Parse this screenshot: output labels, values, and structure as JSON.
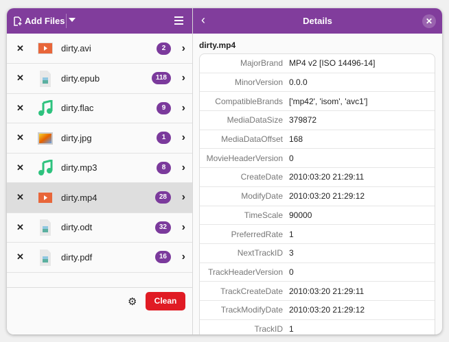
{
  "header": {
    "add_files": "Add Files",
    "title": "Details"
  },
  "files": [
    {
      "name": "dirty.avi",
      "count": "2",
      "type": "video"
    },
    {
      "name": "dirty.epub",
      "count": "118",
      "type": "document"
    },
    {
      "name": "dirty.flac",
      "count": "9",
      "type": "audio"
    },
    {
      "name": "dirty.jpg",
      "count": "1",
      "type": "image"
    },
    {
      "name": "dirty.mp3",
      "count": "8",
      "type": "audio"
    },
    {
      "name": "dirty.mp4",
      "count": "28",
      "type": "video",
      "selected": true
    },
    {
      "name": "dirty.odt",
      "count": "32",
      "type": "document"
    },
    {
      "name": "dirty.pdf",
      "count": "16",
      "type": "document"
    }
  ],
  "footer": {
    "clean": "Clean"
  },
  "details": {
    "filename": "dirty.mp4",
    "rows": [
      {
        "k": "MajorBrand",
        "v": "MP4 v2 [ISO 14496-14]"
      },
      {
        "k": "MinorVersion",
        "v": "0.0.0"
      },
      {
        "k": "CompatibleBrands",
        "v": "['mp42', 'isom', 'avc1']"
      },
      {
        "k": "MediaDataSize",
        "v": "379872"
      },
      {
        "k": "MediaDataOffset",
        "v": "168"
      },
      {
        "k": "MovieHeaderVersion",
        "v": "0"
      },
      {
        "k": "CreateDate",
        "v": "2010:03:20 21:29:11"
      },
      {
        "k": "ModifyDate",
        "v": "2010:03:20 21:29:12"
      },
      {
        "k": "TimeScale",
        "v": "90000"
      },
      {
        "k": "PreferredRate",
        "v": "1"
      },
      {
        "k": "NextTrackID",
        "v": "3"
      },
      {
        "k": "TrackHeaderVersion",
        "v": "0"
      },
      {
        "k": "TrackCreateDate",
        "v": "2010:03:20 21:29:11"
      },
      {
        "k": "TrackModifyDate",
        "v": "2010:03:20 21:29:12"
      },
      {
        "k": "TrackID",
        "v": "1"
      }
    ]
  },
  "colors": {
    "header": "#813d9c",
    "badge": "#7b3a9c",
    "clean": "#e01b24"
  }
}
